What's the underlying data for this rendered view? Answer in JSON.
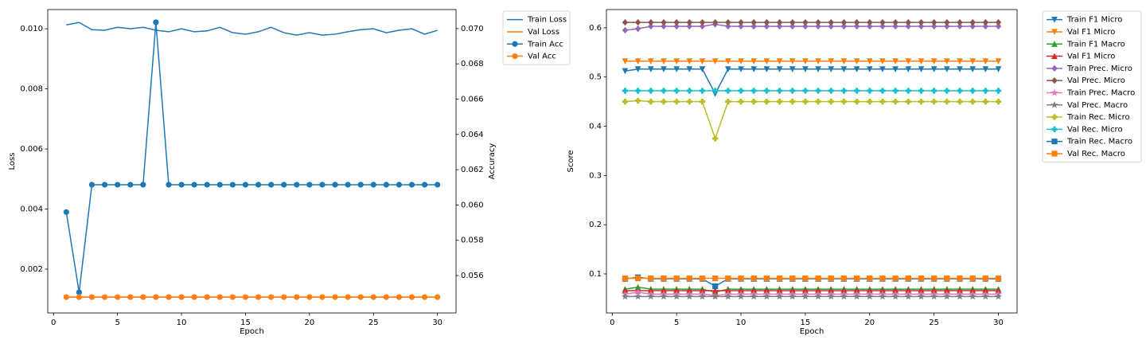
{
  "chart_data": [
    {
      "type": "line",
      "x": [
        1,
        2,
        3,
        4,
        5,
        6,
        7,
        8,
        9,
        10,
        11,
        12,
        13,
        14,
        15,
        16,
        17,
        18,
        19,
        20,
        21,
        22,
        23,
        24,
        25,
        26,
        27,
        28,
        29,
        30
      ],
      "xlabel": "Epoch",
      "ylabel": "Loss",
      "y2label": "Accuracy",
      "xlim": [
        -0.45,
        31.45
      ],
      "xticks": [
        0,
        5,
        10,
        15,
        20,
        25,
        30
      ],
      "ylim": [
        0.000543,
        0.01064
      ],
      "yticks": [
        0.002,
        0.004,
        0.006,
        0.008,
        {
          "value": 0.01,
          "label": "0.010"
        }
      ],
      "y2lim": [
        0.05388,
        0.07108
      ],
      "y2ticks": [
        0.056,
        0.058,
        {
          "value": 0.06,
          "label": "0.060"
        },
        0.062,
        0.064,
        0.066,
        0.068,
        {
          "value": 0.07,
          "label": "0.070"
        }
      ],
      "legend": "outside-upper-right",
      "series": [
        {
          "name": "Train Loss",
          "color": "#1f77b4",
          "marker": "none",
          "values": [
            0.01013,
            0.01021,
            0.00997,
            0.00995,
            0.01005,
            0.01,
            0.01005,
            0.00995,
            0.0099,
            0.01,
            0.0099,
            0.00993,
            0.01005,
            0.00987,
            0.00982,
            0.0099,
            0.01005,
            0.00987,
            0.00979,
            0.00987,
            0.00979,
            0.00982,
            0.0099,
            0.00997,
            0.01,
            0.00987,
            0.00995,
            0.01,
            0.00982,
            0.00995
          ]
        },
        {
          "name": "Val Loss",
          "color": "#ff7f0e",
          "marker": "none",
          "values": [
            0.00107,
            0.00107,
            0.00107,
            0.00107,
            0.00107,
            0.00107,
            0.00107,
            0.00107,
            0.00107,
            0.00107,
            0.00107,
            0.00107,
            0.00107,
            0.00107,
            0.00107,
            0.00107,
            0.00107,
            0.00107,
            0.00107,
            0.00107,
            0.00107,
            0.00107,
            0.00107,
            0.00107,
            0.00107,
            0.00107,
            0.00107,
            0.00107,
            0.00107,
            0.00107
          ]
        },
        {
          "name": "Train Acc",
          "color": "#1f77b4",
          "marker": "o",
          "axis": "y2",
          "values": [
            0.0596,
            0.05505,
            0.06115,
            0.06115,
            0.06115,
            0.06115,
            0.06115,
            0.07036,
            0.06115,
            0.06115,
            0.06115,
            0.06115,
            0.06115,
            0.06115,
            0.06115,
            0.06115,
            0.06115,
            0.06115,
            0.06115,
            0.06115,
            0.06115,
            0.06115,
            0.06115,
            0.06115,
            0.06115,
            0.06115,
            0.06115,
            0.06115,
            0.06115,
            0.06115
          ]
        },
        {
          "name": "Val Acc",
          "color": "#ff7f0e",
          "marker": "o",
          "axis": "y2",
          "values": [
            0.05478,
            0.05478,
            0.05478,
            0.05478,
            0.05478,
            0.05478,
            0.05478,
            0.05478,
            0.05478,
            0.05478,
            0.05478,
            0.05478,
            0.05478,
            0.05478,
            0.05478,
            0.05478,
            0.05478,
            0.05478,
            0.05478,
            0.05478,
            0.05478,
            0.05478,
            0.05478,
            0.05478,
            0.05478,
            0.05478,
            0.05478,
            0.05478,
            0.05478,
            0.05478
          ]
        }
      ]
    },
    {
      "type": "line",
      "x": [
        1,
        2,
        3,
        4,
        5,
        6,
        7,
        8,
        9,
        10,
        11,
        12,
        13,
        14,
        15,
        16,
        17,
        18,
        19,
        20,
        21,
        22,
        23,
        24,
        25,
        26,
        27,
        28,
        29,
        30
      ],
      "xlabel": "Epoch",
      "ylabel": "Score",
      "xlim": [
        -0.45,
        31.45
      ],
      "xticks": [
        0,
        5,
        10,
        15,
        20,
        25,
        30
      ],
      "ylim": [
        0.0207,
        0.637
      ],
      "yticks": [
        0.1,
        0.2,
        0.3,
        0.4,
        0.5,
        0.6
      ],
      "legend": "outside-upper-right",
      "series": [
        {
          "name": "Train F1 Micro",
          "color": "#1f77b4",
          "marker": "v",
          "values": [
            0.512,
            0.516,
            0.516,
            0.516,
            0.516,
            0.516,
            0.516,
            0.466,
            0.516,
            0.516,
            0.516,
            0.516,
            0.516,
            0.516,
            0.516,
            0.516,
            0.516,
            0.516,
            0.516,
            0.516,
            0.516,
            0.516,
            0.516,
            0.516,
            0.516,
            0.516,
            0.516,
            0.516,
            0.516,
            0.516
          ]
        },
        {
          "name": "Val F1 Micro",
          "color": "#ff7f0e",
          "marker": "v",
          "values": [
            0.532,
            0.532,
            0.532,
            0.532,
            0.532,
            0.532,
            0.532,
            0.532,
            0.532,
            0.532,
            0.532,
            0.532,
            0.532,
            0.532,
            0.532,
            0.532,
            0.532,
            0.532,
            0.532,
            0.532,
            0.532,
            0.532,
            0.532,
            0.532,
            0.532,
            0.532,
            0.532,
            0.532,
            0.532,
            0.532
          ]
        },
        {
          "name": "Train F1 Macro",
          "color": "#2ca02c",
          "marker": "^",
          "values": [
            0.069,
            0.073,
            0.069,
            0.069,
            0.069,
            0.069,
            0.069,
            0.063,
            0.069,
            0.069,
            0.069,
            0.069,
            0.069,
            0.069,
            0.069,
            0.069,
            0.069,
            0.069,
            0.069,
            0.069,
            0.069,
            0.069,
            0.069,
            0.069,
            0.069,
            0.069,
            0.069,
            0.069,
            0.069,
            0.069
          ]
        },
        {
          "name": "Val F1 Micro",
          "color": "#d62728",
          "marker": "^",
          "values": [
            0.066,
            0.066,
            0.066,
            0.066,
            0.066,
            0.066,
            0.066,
            0.066,
            0.066,
            0.066,
            0.066,
            0.066,
            0.066,
            0.066,
            0.066,
            0.066,
            0.066,
            0.066,
            0.066,
            0.066,
            0.066,
            0.066,
            0.066,
            0.066,
            0.066,
            0.066,
            0.066,
            0.066,
            0.066,
            0.066
          ]
        },
        {
          "name": "Train Prec. Micro",
          "color": "#9467bd",
          "marker": "D",
          "values": [
            0.595,
            0.598,
            0.603,
            0.603,
            0.603,
            0.603,
            0.603,
            0.607,
            0.603,
            0.603,
            0.603,
            0.603,
            0.603,
            0.603,
            0.603,
            0.603,
            0.603,
            0.603,
            0.603,
            0.603,
            0.603,
            0.603,
            0.603,
            0.603,
            0.603,
            0.603,
            0.603,
            0.603,
            0.603,
            0.603
          ]
        },
        {
          "name": "Val Prec. Micro",
          "color": "#8c564b",
          "marker": "D",
          "values": [
            0.611,
            0.611,
            0.611,
            0.611,
            0.611,
            0.611,
            0.611,
            0.611,
            0.611,
            0.611,
            0.611,
            0.611,
            0.611,
            0.611,
            0.611,
            0.611,
            0.611,
            0.611,
            0.611,
            0.611,
            0.611,
            0.611,
            0.611,
            0.611,
            0.611,
            0.611,
            0.611,
            0.611,
            0.611,
            0.611
          ]
        },
        {
          "name": "Train Prec. Macro",
          "color": "#e377c2",
          "marker": "*",
          "values": [
            0.059,
            0.063,
            0.059,
            0.059,
            0.059,
            0.059,
            0.059,
            0.056,
            0.059,
            0.059,
            0.059,
            0.059,
            0.059,
            0.059,
            0.059,
            0.059,
            0.059,
            0.059,
            0.059,
            0.059,
            0.059,
            0.059,
            0.059,
            0.059,
            0.059,
            0.059,
            0.059,
            0.059,
            0.059,
            0.059
          ]
        },
        {
          "name": "Val Prec. Macro",
          "color": "#7f7f7f",
          "marker": "*",
          "values": [
            0.054,
            0.054,
            0.054,
            0.054,
            0.054,
            0.054,
            0.054,
            0.054,
            0.054,
            0.054,
            0.054,
            0.054,
            0.054,
            0.054,
            0.054,
            0.054,
            0.054,
            0.054,
            0.054,
            0.054,
            0.054,
            0.054,
            0.054,
            0.054,
            0.054,
            0.054,
            0.054,
            0.054,
            0.054,
            0.054
          ]
        },
        {
          "name": "Train Rec. Micro",
          "color": "#bcbd22",
          "marker": "P",
          "values": [
            0.45,
            0.452,
            0.45,
            0.45,
            0.45,
            0.45,
            0.45,
            0.375,
            0.45,
            0.45,
            0.45,
            0.45,
            0.45,
            0.45,
            0.45,
            0.45,
            0.45,
            0.45,
            0.45,
            0.45,
            0.45,
            0.45,
            0.45,
            0.45,
            0.45,
            0.45,
            0.45,
            0.45,
            0.45,
            0.45
          ]
        },
        {
          "name": "Val Rec. Micro",
          "color": "#17becf",
          "marker": "P",
          "values": [
            0.472,
            0.472,
            0.472,
            0.472,
            0.472,
            0.472,
            0.472,
            0.472,
            0.472,
            0.472,
            0.472,
            0.472,
            0.472,
            0.472,
            0.472,
            0.472,
            0.472,
            0.472,
            0.472,
            0.472,
            0.472,
            0.472,
            0.472,
            0.472,
            0.472,
            0.472,
            0.472,
            0.472,
            0.472,
            0.472
          ]
        },
        {
          "name": "Train Rec. Macro",
          "color": "#1f77b4",
          "marker": "s",
          "values": [
            0.09,
            0.093,
            0.09,
            0.09,
            0.09,
            0.09,
            0.09,
            0.075,
            0.09,
            0.09,
            0.09,
            0.09,
            0.09,
            0.09,
            0.09,
            0.09,
            0.09,
            0.09,
            0.09,
            0.09,
            0.09,
            0.09,
            0.09,
            0.09,
            0.09,
            0.09,
            0.09,
            0.09,
            0.09,
            0.09
          ]
        },
        {
          "name": "Val Rec. Macro",
          "color": "#ff7f0e",
          "marker": "s",
          "values": [
            0.091,
            0.091,
            0.091,
            0.091,
            0.091,
            0.091,
            0.091,
            0.091,
            0.091,
            0.091,
            0.091,
            0.091,
            0.091,
            0.091,
            0.091,
            0.091,
            0.091,
            0.091,
            0.091,
            0.091,
            0.091,
            0.091,
            0.091,
            0.091,
            0.091,
            0.091,
            0.091,
            0.091,
            0.091,
            0.091
          ]
        }
      ]
    }
  ]
}
